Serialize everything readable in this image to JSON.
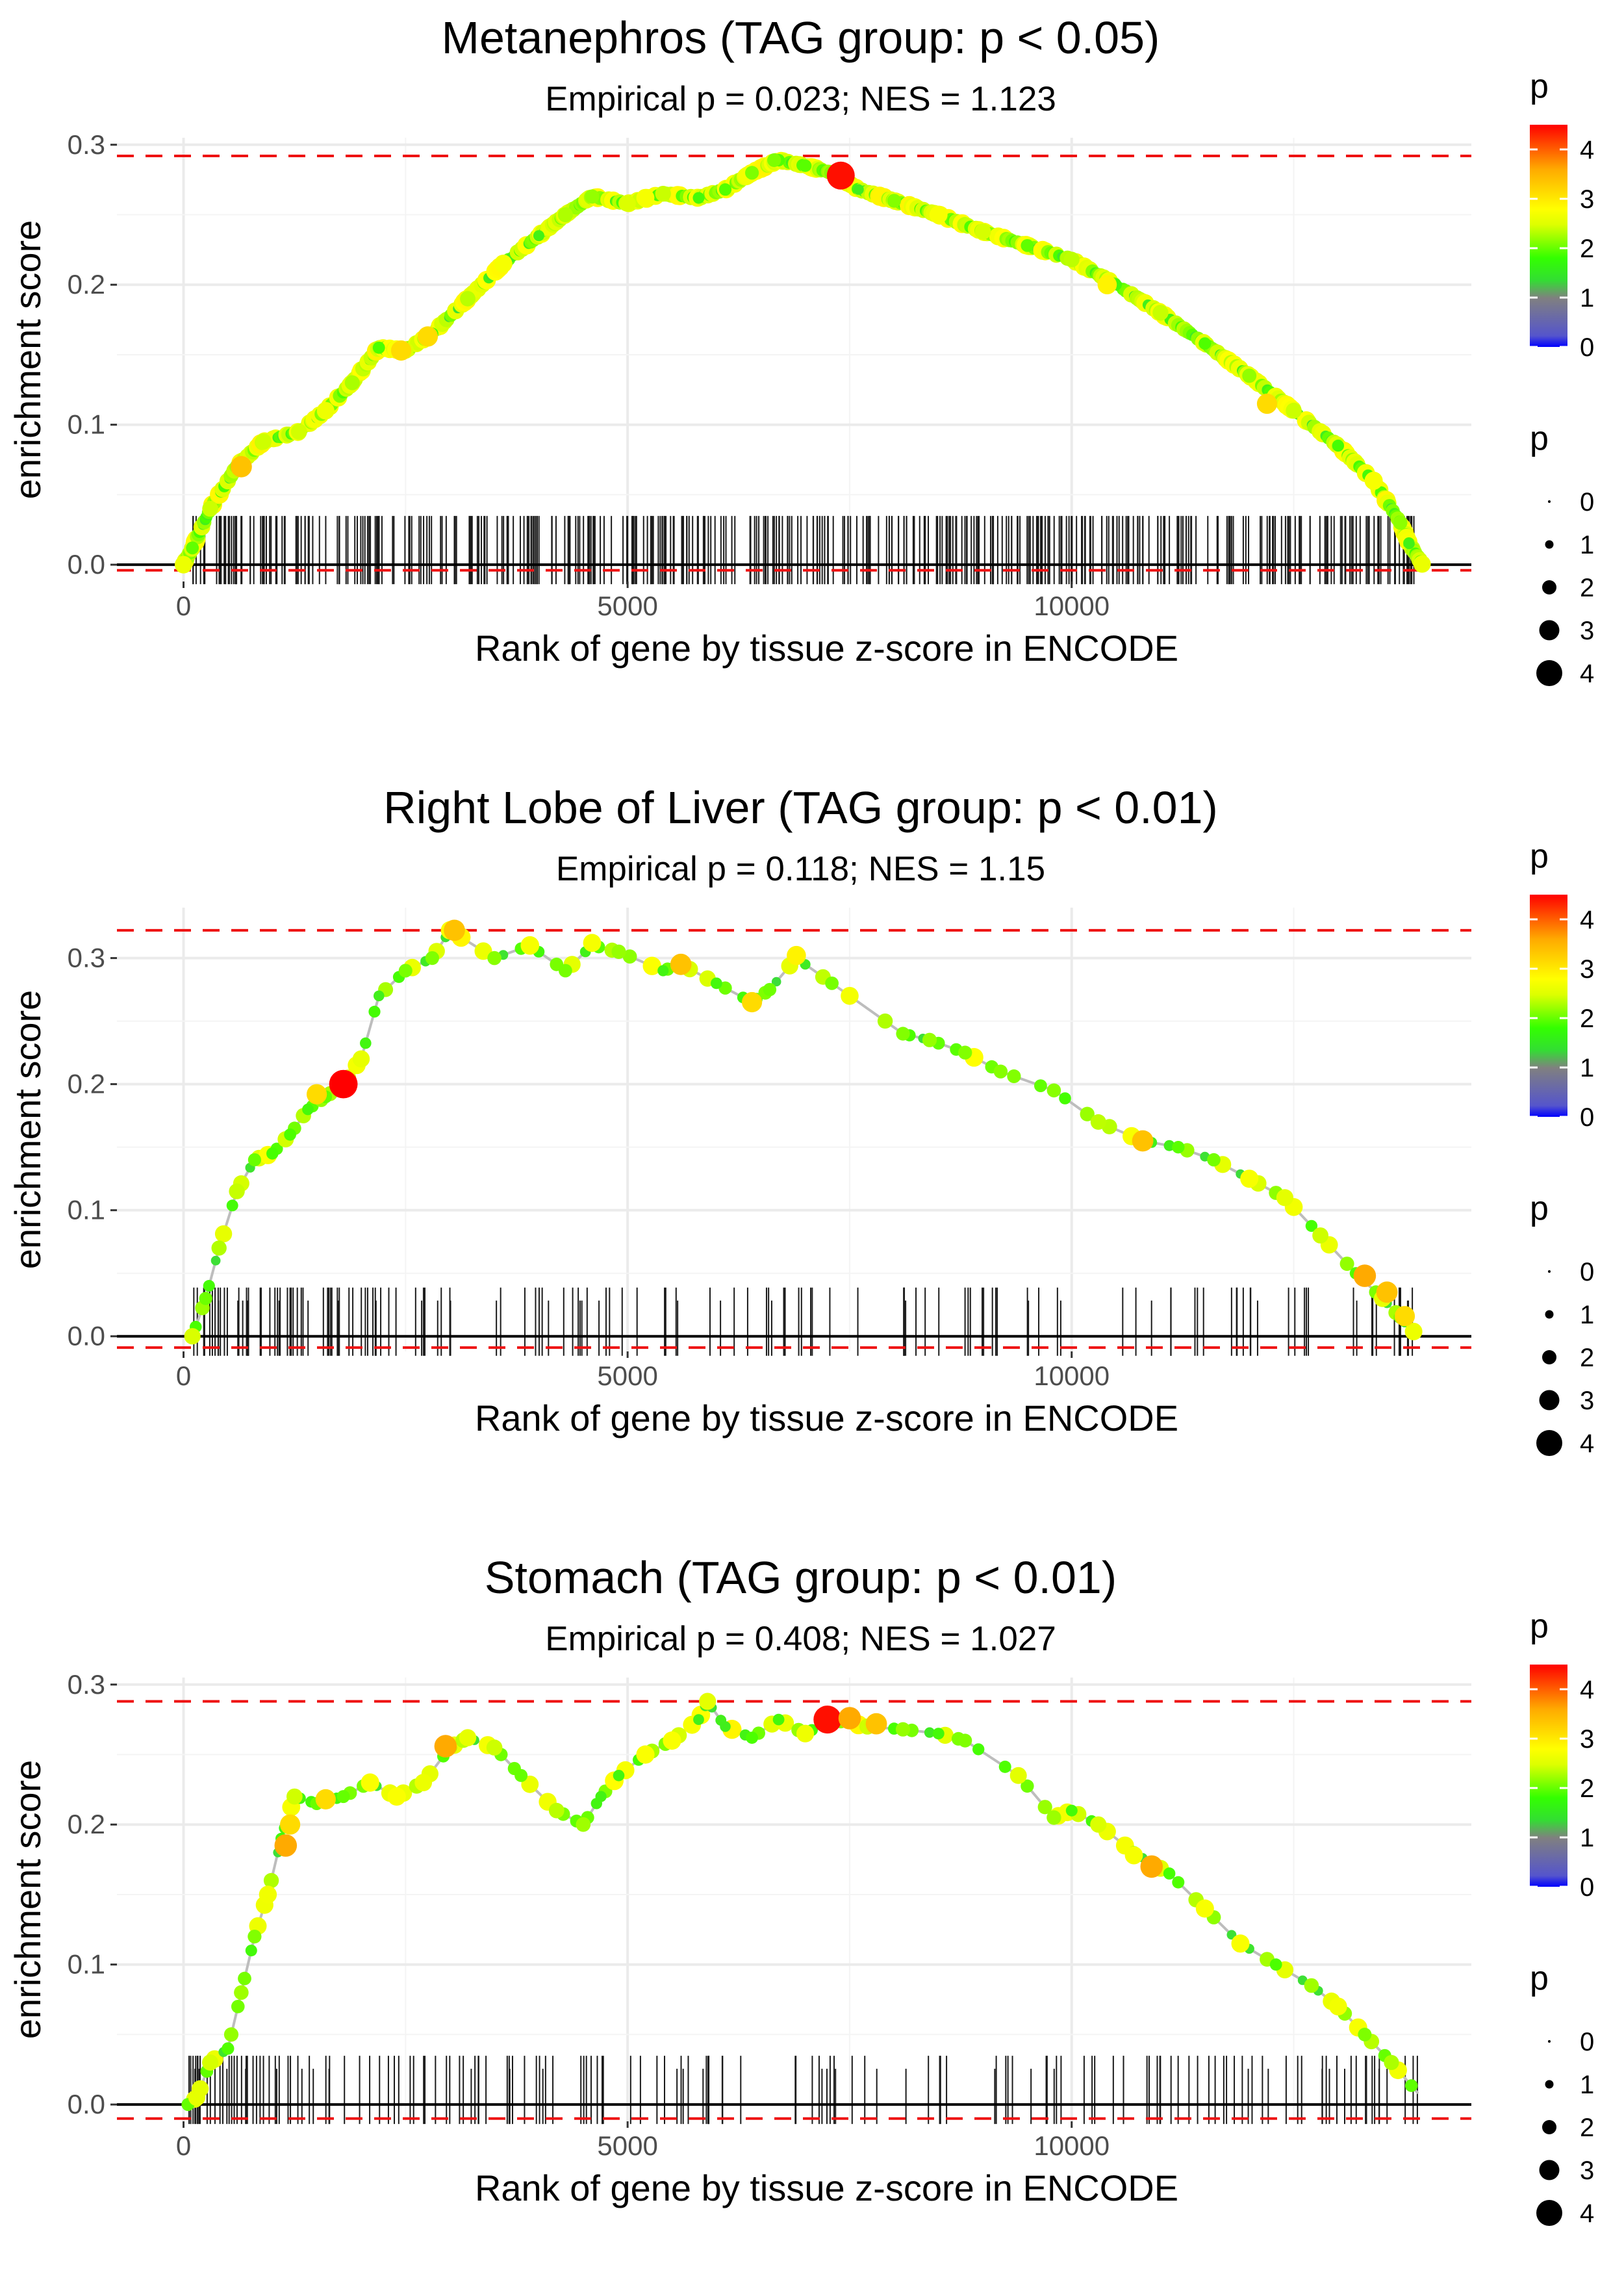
{
  "chart_data": [
    {
      "type": "line",
      "title": "Metanephros (TAG group: p < 0.05)",
      "subtitle": "Empirical p = 0.023; NES = 1.123",
      "xlabel": "Rank of gene by tissue z-score in ENCODE",
      "ylabel": "enrichment score",
      "xlim": [
        -750,
        14500
      ],
      "ylim": [
        -0.012,
        0.305
      ],
      "x_ticks": [
        0,
        5000,
        10000
      ],
      "x_tick_labels": [
        "0",
        "5000",
        "10000"
      ],
      "y_ticks": [
        0.0,
        0.1,
        0.2,
        0.3
      ],
      "y_tick_labels": [
        "0.0",
        "0.1",
        "0.2",
        "0.3"
      ],
      "max_es": 0.292,
      "min_es": -0.004,
      "n_genes": 14000,
      "rug_count": 420,
      "seed": 11,
      "curve": [
        [
          0,
          0
        ],
        [
          100,
          0.012
        ],
        [
          300,
          0.04
        ],
        [
          600,
          0.07
        ],
        [
          900,
          0.088
        ],
        [
          1300,
          0.095
        ],
        [
          1600,
          0.11
        ],
        [
          1900,
          0.13
        ],
        [
          2200,
          0.155
        ],
        [
          2500,
          0.153
        ],
        [
          2800,
          0.165
        ],
        [
          3200,
          0.19
        ],
        [
          3600,
          0.215
        ],
        [
          4000,
          0.235
        ],
        [
          4300,
          0.25
        ],
        [
          4600,
          0.263
        ],
        [
          5000,
          0.258
        ],
        [
          5400,
          0.265
        ],
        [
          5800,
          0.262
        ],
        [
          6100,
          0.268
        ],
        [
          6400,
          0.28
        ],
        [
          6700,
          0.289
        ],
        [
          7000,
          0.285
        ],
        [
          7300,
          0.28
        ],
        [
          7600,
          0.268
        ],
        [
          8000,
          0.26
        ],
        [
          8500,
          0.25
        ],
        [
          9000,
          0.238
        ],
        [
          9500,
          0.228
        ],
        [
          10000,
          0.218
        ],
        [
          10500,
          0.2
        ],
        [
          11000,
          0.18
        ],
        [
          11500,
          0.158
        ],
        [
          12000,
          0.135
        ],
        [
          12500,
          0.11
        ],
        [
          13000,
          0.085
        ],
        [
          13400,
          0.06
        ],
        [
          13700,
          0.03
        ],
        [
          13800,
          0.015
        ],
        [
          13950,
          0
        ]
      ],
      "points": [
        [
          650,
          0.07,
          3.2
        ],
        [
          2450,
          0.153,
          3.0
        ],
        [
          2750,
          0.163,
          3.0
        ],
        [
          7400,
          0.278,
          4.4
        ],
        [
          5200,
          0.262,
          2.6
        ],
        [
          6650,
          0.289,
          1.8
        ],
        [
          12200,
          0.115,
          3.0
        ],
        [
          10400,
          0.2,
          2.8
        ]
      ],
      "colorbar_title": "p",
      "colorbar_labels": [
        "0",
        "1",
        "2",
        "3",
        "4"
      ],
      "size_legend_title": "p",
      "size_legend_labels": [
        "0",
        "1",
        "2",
        "3",
        "4"
      ]
    },
    {
      "type": "line",
      "title": "Right Lobe of Liver (TAG group: p < 0.01)",
      "subtitle": "Empirical p = 0.118; NES = 1.15",
      "xlabel": "Rank of gene by tissue z-score in ENCODE",
      "ylabel": "enrichment score",
      "xlim": [
        -750,
        14500
      ],
      "ylim": [
        -0.012,
        0.34
      ],
      "x_ticks": [
        0,
        5000,
        10000
      ],
      "x_tick_labels": [
        "0",
        "5000",
        "10000"
      ],
      "y_ticks": [
        0.0,
        0.1,
        0.2,
        0.3
      ],
      "y_tick_labels": [
        "0.0",
        "0.1",
        "0.2",
        "0.3"
      ],
      "max_es": 0.322,
      "min_es": -0.009,
      "n_genes": 14000,
      "rug_count": 150,
      "seed": 23,
      "curve": [
        [
          100,
          0
        ],
        [
          250,
          0.03
        ],
        [
          400,
          0.07
        ],
        [
          600,
          0.115
        ],
        [
          800,
          0.14
        ],
        [
          1000,
          0.145
        ],
        [
          1200,
          0.16
        ],
        [
          1400,
          0.18
        ],
        [
          1600,
          0.19
        ],
        [
          1800,
          0.2
        ],
        [
          2000,
          0.22
        ],
        [
          2200,
          0.27
        ],
        [
          2500,
          0.29
        ],
        [
          2800,
          0.3
        ],
        [
          3000,
          0.322
        ],
        [
          3500,
          0.3
        ],
        [
          3900,
          0.31
        ],
        [
          4300,
          0.29
        ],
        [
          4600,
          0.31
        ],
        [
          4900,
          0.305
        ],
        [
          5400,
          0.29
        ],
        [
          5600,
          0.295
        ],
        [
          6000,
          0.28
        ],
        [
          6400,
          0.265
        ],
        [
          6600,
          0.275
        ],
        [
          6900,
          0.3
        ],
        [
          7300,
          0.28
        ],
        [
          8100,
          0.24
        ],
        [
          8400,
          0.235
        ],
        [
          8800,
          0.225
        ],
        [
          9200,
          0.21
        ],
        [
          9800,
          0.195
        ],
        [
          10300,
          0.17
        ],
        [
          10800,
          0.155
        ],
        [
          11200,
          0.15
        ],
        [
          11600,
          0.14
        ],
        [
          12000,
          0.125
        ],
        [
          12400,
          0.11
        ],
        [
          12800,
          0.08
        ],
        [
          13200,
          0.05
        ],
        [
          13500,
          0.03
        ],
        [
          13700,
          0.015
        ],
        [
          13900,
          0
        ]
      ],
      "points": [
        [
          1800,
          0.2,
          4.5
        ],
        [
          3050,
          0.322,
          3.2
        ],
        [
          5600,
          0.295,
          3.2
        ],
        [
          6400,
          0.265,
          3.0
        ],
        [
          6900,
          0.302,
          2.8
        ],
        [
          1500,
          0.192,
          3.0
        ],
        [
          10800,
          0.155,
          3.2
        ],
        [
          13300,
          0.048,
          3.4
        ],
        [
          13550,
          0.035,
          3.2
        ],
        [
          13750,
          0.016,
          3.0
        ],
        [
          4600,
          0.312,
          2.6
        ],
        [
          3900,
          0.31,
          2.6
        ]
      ],
      "colorbar_title": "p",
      "colorbar_labels": [
        "0",
        "1",
        "2",
        "3",
        "4"
      ],
      "size_legend_title": "p",
      "size_legend_labels": [
        "0",
        "1",
        "2",
        "3",
        "4"
      ]
    },
    {
      "type": "line",
      "title": "Stomach (TAG group: p < 0.01)",
      "subtitle": "Empirical p = 0.408; NES = 1.027",
      "xlabel": "Rank of gene by tissue z-score in ENCODE",
      "ylabel": "enrichment score",
      "xlim": [
        -750,
        14500
      ],
      "ylim": [
        -0.012,
        0.305
      ],
      "x_ticks": [
        0,
        5000,
        10000
      ],
      "x_tick_labels": [
        "0",
        "5000",
        "10000"
      ],
      "y_ticks": [
        0.0,
        0.1,
        0.2,
        0.3
      ],
      "y_tick_labels": [
        "0.0",
        "0.1",
        "0.2",
        "0.3"
      ],
      "max_es": 0.288,
      "min_es": -0.01,
      "n_genes": 14000,
      "rug_count": 170,
      "seed": 37,
      "curve": [
        [
          50,
          0
        ],
        [
          150,
          0.005
        ],
        [
          300,
          0.03
        ],
        [
          500,
          0.04
        ],
        [
          650,
          0.08
        ],
        [
          800,
          0.12
        ],
        [
          950,
          0.15
        ],
        [
          1100,
          0.19
        ],
        [
          1250,
          0.22
        ],
        [
          1500,
          0.215
        ],
        [
          1800,
          0.22
        ],
        [
          2100,
          0.23
        ],
        [
          2400,
          0.22
        ],
        [
          2700,
          0.23
        ],
        [
          3000,
          0.255
        ],
        [
          3200,
          0.262
        ],
        [
          3500,
          0.255
        ],
        [
          3800,
          0.235
        ],
        [
          4200,
          0.21
        ],
        [
          4500,
          0.2
        ],
        [
          4700,
          0.22
        ],
        [
          4900,
          0.235
        ],
        [
          5200,
          0.25
        ],
        [
          5500,
          0.26
        ],
        [
          5800,
          0.275
        ],
        [
          5900,
          0.288
        ],
        [
          6100,
          0.27
        ],
        [
          6400,
          0.262
        ],
        [
          6700,
          0.275
        ],
        [
          7000,
          0.265
        ],
        [
          7300,
          0.275
        ],
        [
          7700,
          0.27
        ],
        [
          8100,
          0.268
        ],
        [
          8500,
          0.265
        ],
        [
          8800,
          0.26
        ],
        [
          9400,
          0.235
        ],
        [
          9800,
          0.205
        ],
        [
          10000,
          0.21
        ],
        [
          10300,
          0.2
        ],
        [
          10700,
          0.18
        ],
        [
          11100,
          0.165
        ],
        [
          11500,
          0.14
        ],
        [
          11900,
          0.115
        ],
        [
          12300,
          0.1
        ],
        [
          12700,
          0.085
        ],
        [
          13000,
          0.07
        ],
        [
          13300,
          0.05
        ],
        [
          13600,
          0.03
        ],
        [
          13900,
          0.008
        ]
      ],
      "points": [
        [
          1150,
          0.185,
          3.4
        ],
        [
          1200,
          0.2,
          3.0
        ],
        [
          1600,
          0.218,
          3.0
        ],
        [
          2950,
          0.256,
          3.4
        ],
        [
          7250,
          0.275,
          4.4
        ],
        [
          7500,
          0.276,
          3.4
        ],
        [
          7800,
          0.272,
          3.2
        ],
        [
          10900,
          0.17,
          3.4
        ],
        [
          10700,
          0.178,
          2.6
        ],
        [
          5900,
          0.288,
          2.4
        ]
      ],
      "colorbar_title": "p",
      "colorbar_labels": [
        "0",
        "1",
        "2",
        "3",
        "4"
      ],
      "size_legend_title": "p",
      "size_legend_labels": [
        "0",
        "1",
        "2",
        "3",
        "4"
      ]
    }
  ]
}
